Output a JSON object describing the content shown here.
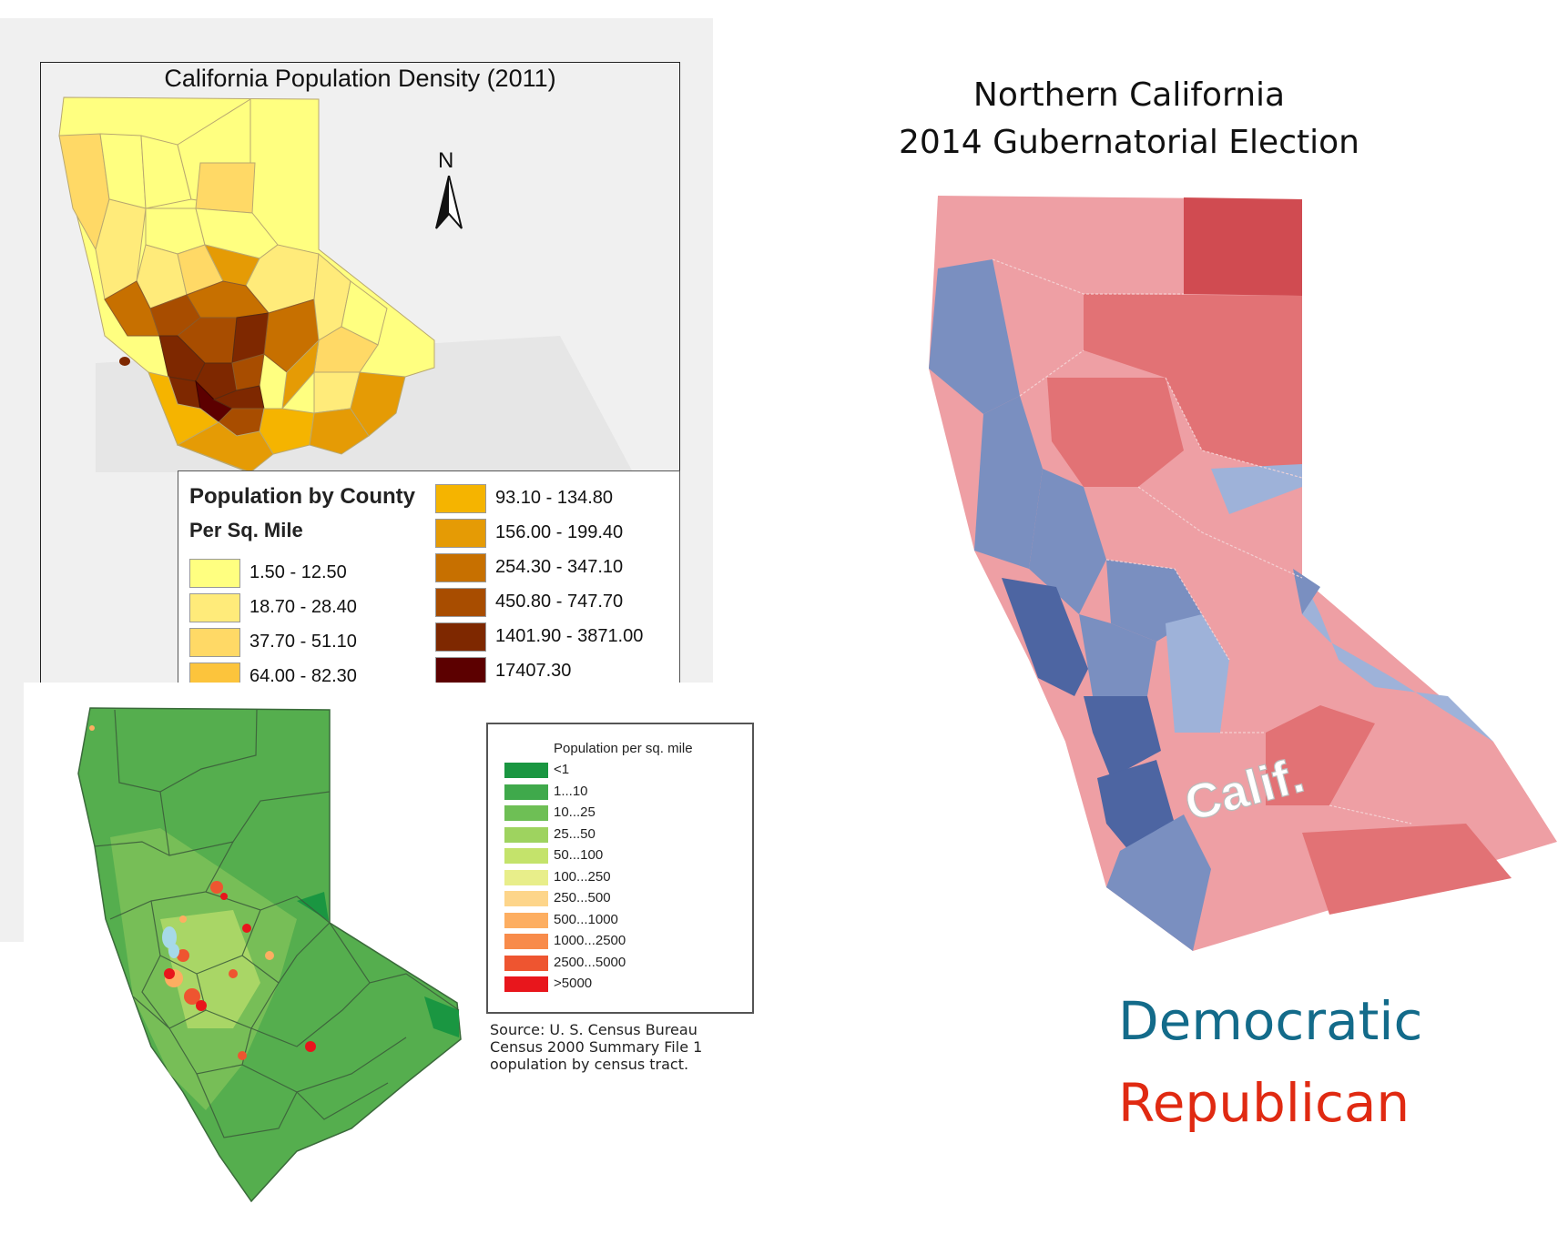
{
  "density_map": {
    "title": "California Population Density (2011)",
    "north_label": "N",
    "legend": {
      "heading1": "Population by County",
      "heading2": "Per Sq. Mile",
      "classes": [
        {
          "label": "1.50 - 12.50",
          "color": "#ffff80"
        },
        {
          "label": "18.70 - 28.40",
          "color": "#ffeb7a"
        },
        {
          "label": "37.70 - 51.10",
          "color": "#ffd966"
        },
        {
          "label": "64.00 - 82.30",
          "color": "#fcc43c"
        },
        {
          "label": "93.10 - 134.80",
          "color": "#f5b400"
        },
        {
          "label": "156.00 - 199.40",
          "color": "#e59b05"
        },
        {
          "label": "254.30 - 347.10",
          "color": "#c77000"
        },
        {
          "label": "450.80 - 747.70",
          "color": "#a84d00"
        },
        {
          "label": "1401.90 - 3871.00",
          "color": "#7e2800"
        },
        {
          "label": "17407.30",
          "color": "#5c0000"
        }
      ]
    }
  },
  "census_map": {
    "legend": {
      "title": "Population per sq. mile",
      "classes": [
        {
          "label": "<1",
          "color": "#1a9641"
        },
        {
          "label": "1...10",
          "color": "#3fa94b"
        },
        {
          "label": "10...25",
          "color": "#6ebf55"
        },
        {
          "label": "25...50",
          "color": "#9ed35f"
        },
        {
          "label": "50...100",
          "color": "#c4e36b"
        },
        {
          "label": "100...250",
          "color": "#e8ee8a"
        },
        {
          "label": "250...500",
          "color": "#fdd58a"
        },
        {
          "label": "500...1000",
          "color": "#fdae61"
        },
        {
          "label": "1000...2500",
          "color": "#f88b4a"
        },
        {
          "label": "2500...5000",
          "color": "#ee5530"
        },
        {
          "label": ">5000",
          "color": "#e8161c"
        }
      ]
    },
    "source": [
      "Source: U. S. Census Bureau",
      "Census 2000 Summary File 1",
      "oopulation by census tract."
    ]
  },
  "election_map": {
    "title_line1": "Northern California",
    "title_line2": "2014 Gubernatorial Election",
    "stamp": "Calif.",
    "legend": [
      {
        "label": "Democratic",
        "color": "#136b8a"
      },
      {
        "label": "Republican",
        "color": "#e02a12"
      }
    ]
  }
}
